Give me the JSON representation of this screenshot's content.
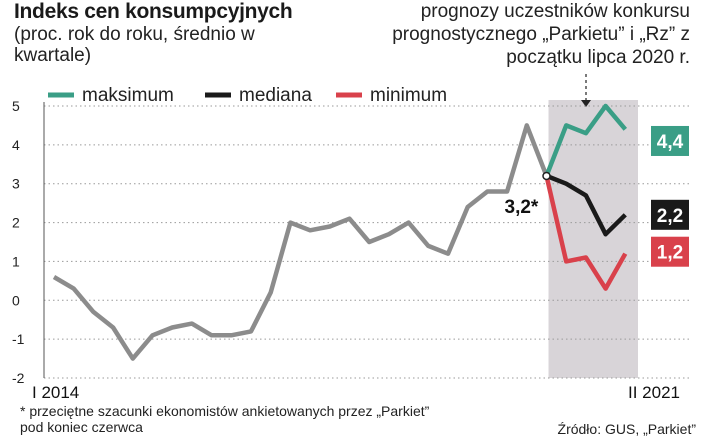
{
  "title": "Indeks cen konsumpcyjnych",
  "subtitle": "(proc. rok do roku, średnio w kwartale)",
  "forecast_note": "prognozy uczestników konkursu prognostycznego „Parkietu” i „Rz” z początku lipca 2020 r.",
  "footnote": "* przeciętne szacunki ekonomistów ankietowanych przez „Parkiet” pod koniec czerwca",
  "source": "Źródło: GUS, „Parkiet”",
  "colors": {
    "history": "#8c8c8c",
    "max": "#3a9e86",
    "median": "#1a1a1a",
    "min": "#d9414b",
    "forecast_band": "#d8d4d8"
  },
  "chart_data": {
    "type": "line",
    "x_first_label": "I 2014",
    "x_last_label": "II 2021",
    "ylim": [
      -2,
      5
    ],
    "yticks": [
      "-2",
      "-1",
      "0",
      "1",
      "2",
      "3",
      "4",
      "5"
    ],
    "grid": "horizontal dotted",
    "legend": [
      {
        "key": "max",
        "label": "maksimum"
      },
      {
        "key": "median",
        "label": "mediana"
      },
      {
        "key": "min",
        "label": "minimum"
      }
    ],
    "history": [
      0.6,
      0.3,
      -0.3,
      -0.7,
      -1.5,
      -0.9,
      -0.7,
      -0.6,
      -0.9,
      -0.9,
      -0.8,
      0.2,
      2.0,
      1.8,
      1.9,
      2.1,
      1.5,
      1.7,
      2.0,
      1.4,
      1.2,
      2.4,
      2.8,
      2.8,
      4.5,
      3.2
    ],
    "series": [
      {
        "key": "max",
        "values": [
          3.2,
          4.5,
          4.3,
          5.0,
          4.4
        ]
      },
      {
        "key": "median",
        "values": [
          3.2,
          3.0,
          2.7,
          1.7,
          2.2
        ]
      },
      {
        "key": "min",
        "values": [
          3.2,
          1.0,
          1.1,
          0.3,
          1.2
        ]
      }
    ],
    "estimate_label": "3,2*",
    "end_labels": {
      "max": "4,4",
      "median": "2,2",
      "min": "1,2"
    }
  }
}
